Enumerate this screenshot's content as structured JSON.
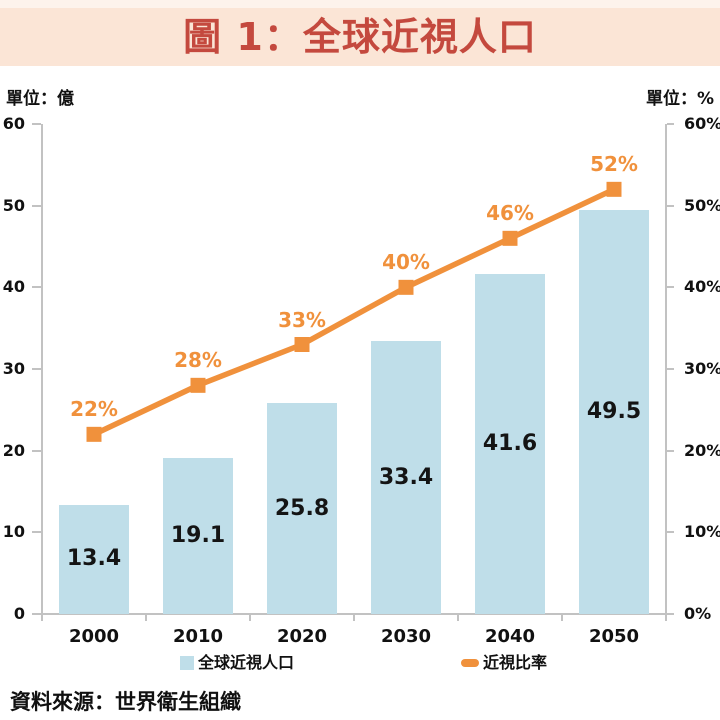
{
  "header": {
    "title": "圖 1：全球近視人口"
  },
  "axes": {
    "unit_left": "單位：億",
    "unit_right": "單位：%"
  },
  "legend": {
    "items": [
      {
        "label": "全球近視人口",
        "series": "bar"
      },
      {
        "label": "近視比率",
        "series": "line"
      }
    ]
  },
  "footer": {
    "source": "資料來源：世界衛生組織"
  },
  "colors": {
    "banner_bg": "#FBE5D6",
    "top_strip": "#FDF3EC",
    "title_text": "#C4493E",
    "bar_fill": "#BFDEE9",
    "line": "#F0913C",
    "axis": "#C2C2C2",
    "text": "#111111"
  },
  "chart_data": {
    "type": "combo",
    "title": "圖 1：全球近視人口",
    "categories": [
      "2000",
      "2010",
      "2020",
      "2030",
      "2040",
      "2050"
    ],
    "series": [
      {
        "name": "全球近視人口",
        "type": "bar",
        "axis": "left",
        "values": [
          13.4,
          19.1,
          25.8,
          33.4,
          41.6,
          49.5
        ],
        "value_labels": [
          "13.4",
          "19.1",
          "25.8",
          "33.4",
          "41.6",
          "49.5"
        ]
      },
      {
        "name": "近視比率",
        "type": "line",
        "axis": "right",
        "values": [
          22,
          28,
          33,
          40,
          46,
          52
        ],
        "value_labels": [
          "22%",
          "28%",
          "33%",
          "40%",
          "46%",
          "52%"
        ]
      }
    ],
    "left_axis": {
      "unit": "單位：億",
      "range": [
        0,
        60
      ],
      "tick_step": 10,
      "ticks": [
        "0",
        "10",
        "20",
        "30",
        "40",
        "50",
        "60"
      ]
    },
    "right_axis": {
      "unit": "單位：%",
      "range": [
        0,
        60
      ],
      "tick_step": 10,
      "ticks": [
        "0%",
        "10%",
        "20%",
        "30%",
        "40%",
        "50%",
        "60%"
      ]
    },
    "legend_position": "bottom",
    "grid": false,
    "source": "資料來源：世界衛生組織"
  }
}
